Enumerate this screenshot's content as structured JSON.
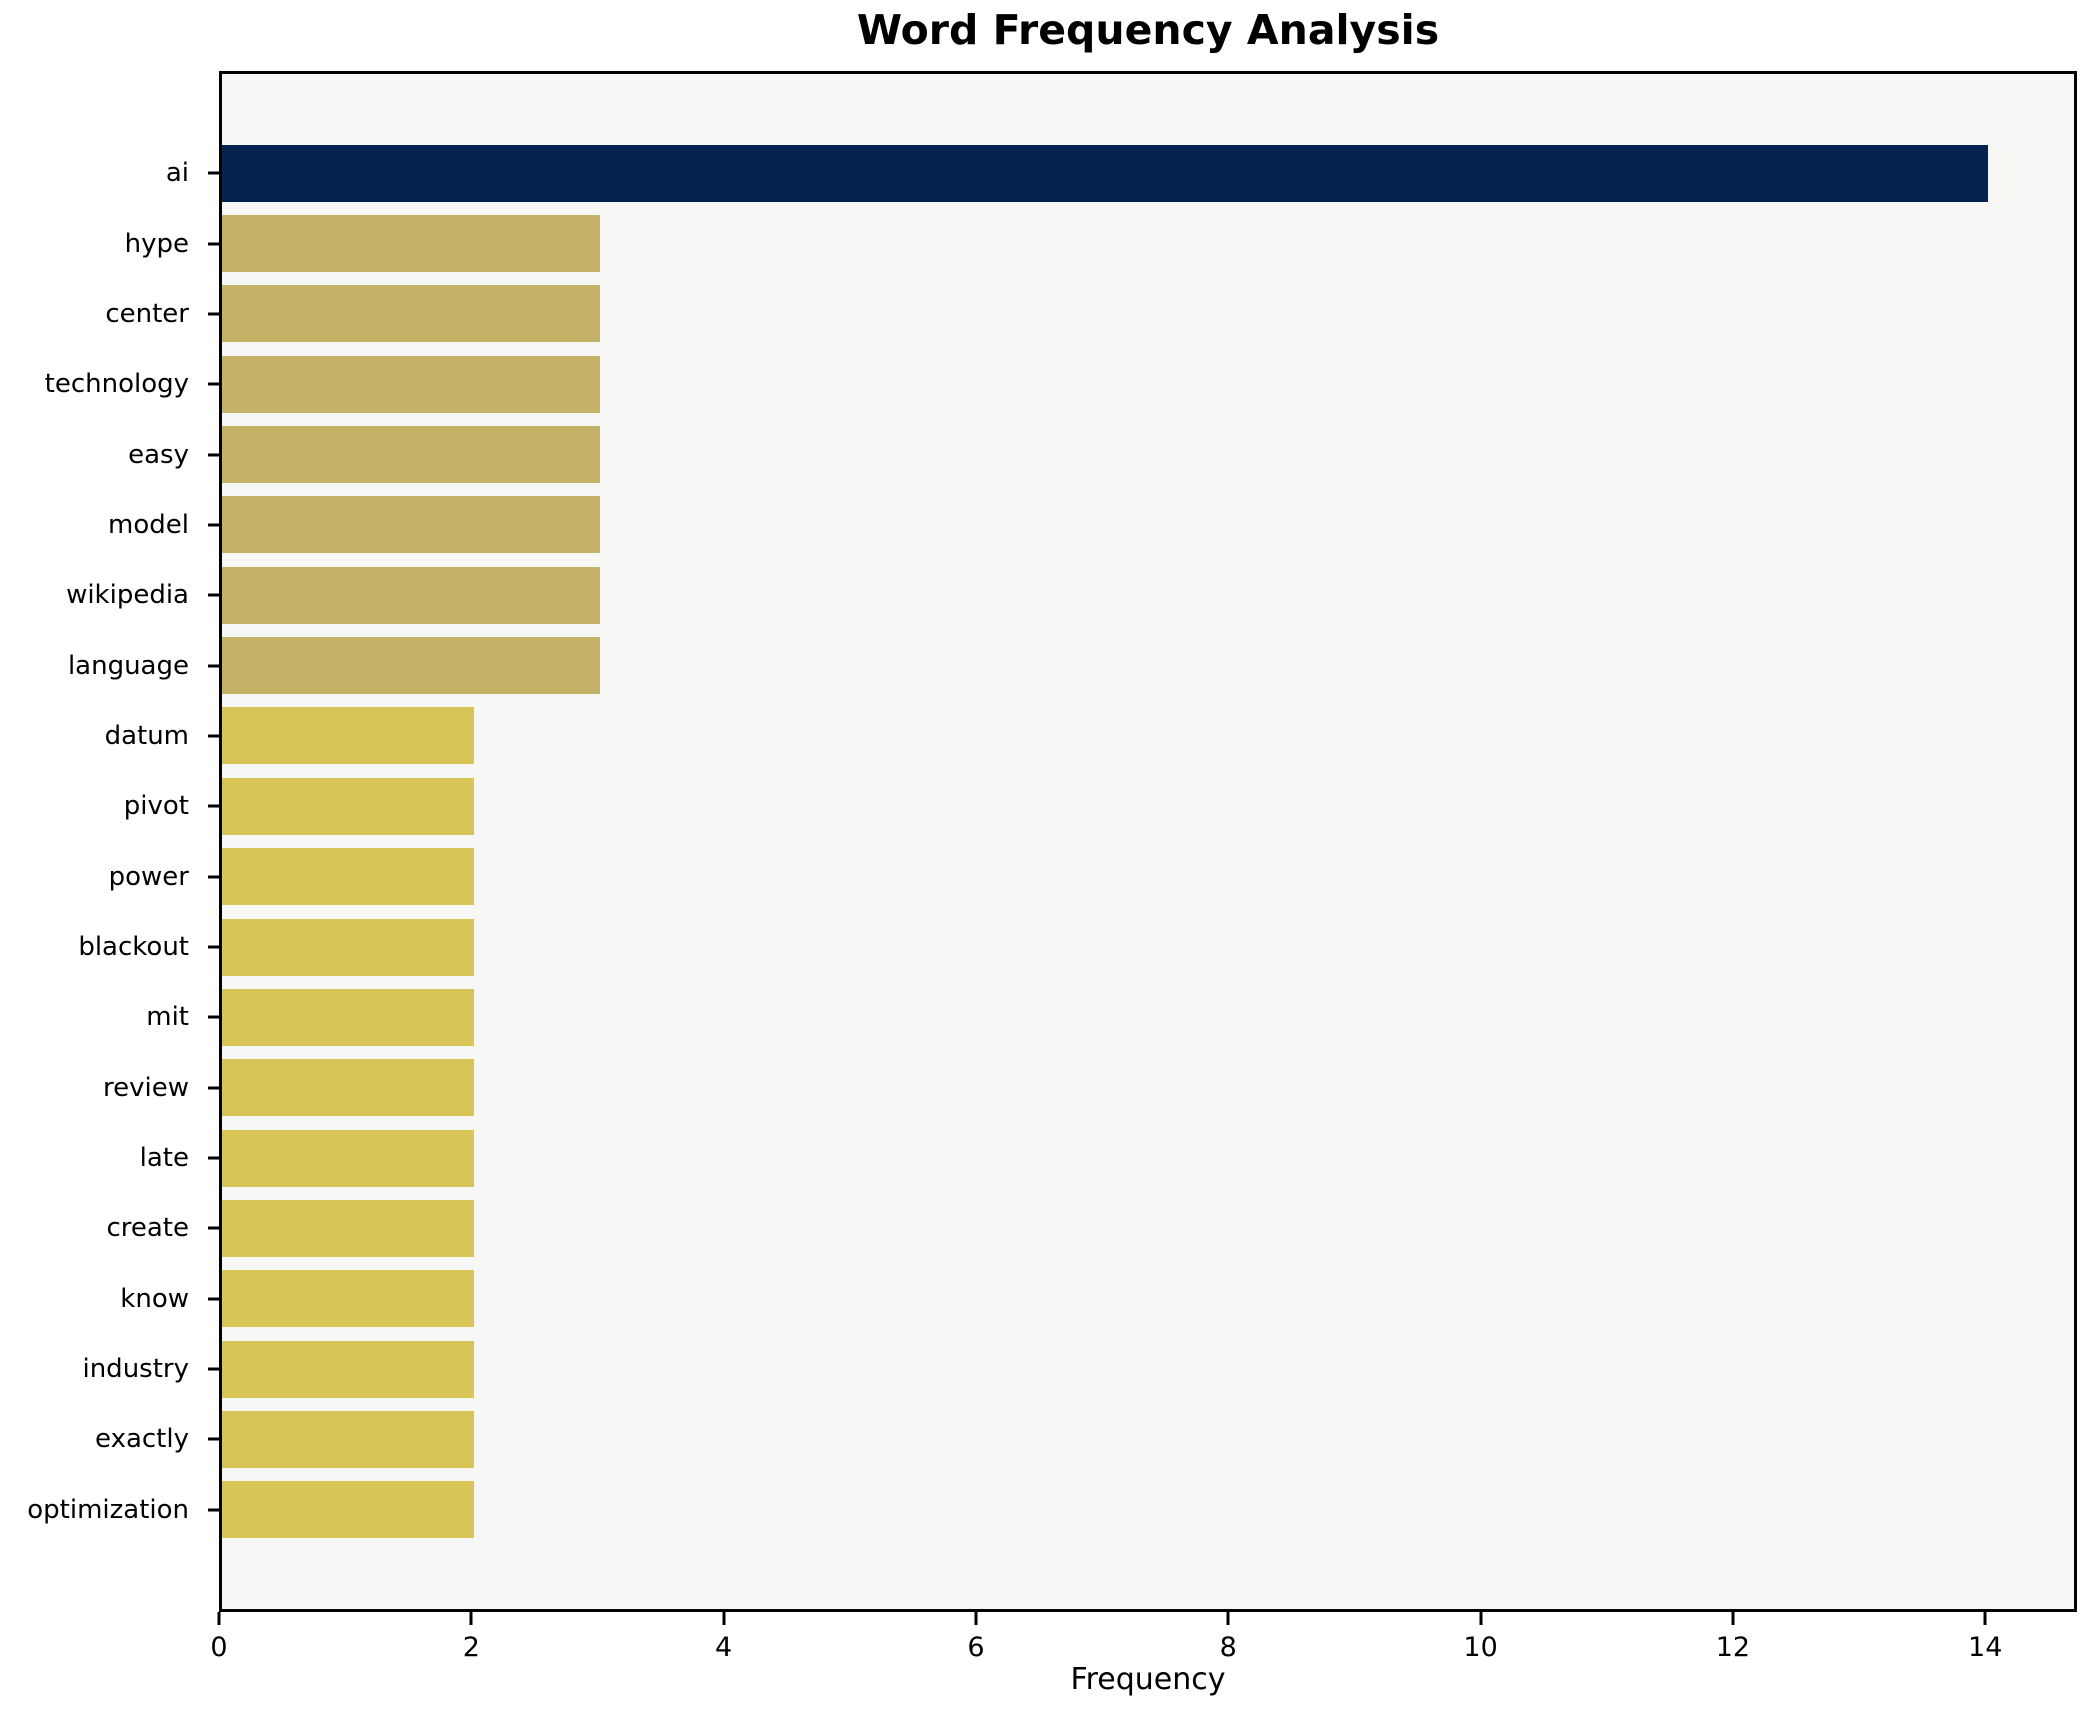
{
  "chart_data": {
    "type": "bar",
    "orientation": "horizontal",
    "title": "Word Frequency Analysis",
    "xlabel": "Frequency",
    "ylabel": "",
    "categories": [
      "ai",
      "hype",
      "center",
      "technology",
      "easy",
      "model",
      "wikipedia",
      "language",
      "datum",
      "pivot",
      "power",
      "blackout",
      "mit",
      "review",
      "late",
      "create",
      "know",
      "industry",
      "exactly",
      "optimization"
    ],
    "values": [
      14,
      3,
      3,
      3,
      3,
      3,
      3,
      3,
      2,
      2,
      2,
      2,
      2,
      2,
      2,
      2,
      2,
      2,
      2,
      2
    ],
    "bar_colors": [
      "#062350",
      "#c3b267",
      "#c3b267",
      "#c3b267",
      "#c3b267",
      "#c3b267",
      "#c3b267",
      "#c3b267",
      "#d9c557",
      "#d9c557",
      "#d9c557",
      "#d9c557",
      "#d9c557",
      "#d9c557",
      "#d9c557",
      "#d9c557",
      "#d9c557",
      "#d9c557",
      "#d9c557",
      "#d9c557"
    ],
    "xticks": [
      0,
      2,
      4,
      6,
      8,
      10,
      12,
      14
    ],
    "xlim": [
      0,
      14.68
    ],
    "grid": false,
    "legend_position": "none",
    "colors": {
      "figure_background": "#ffffff",
      "plot_background": "#f7f7f5",
      "axis_line": "#000000",
      "text": "#000000",
      "max_bar": "#062350",
      "count3_bar": "#c3b267",
      "count2_bar": "#d9c557"
    }
  }
}
